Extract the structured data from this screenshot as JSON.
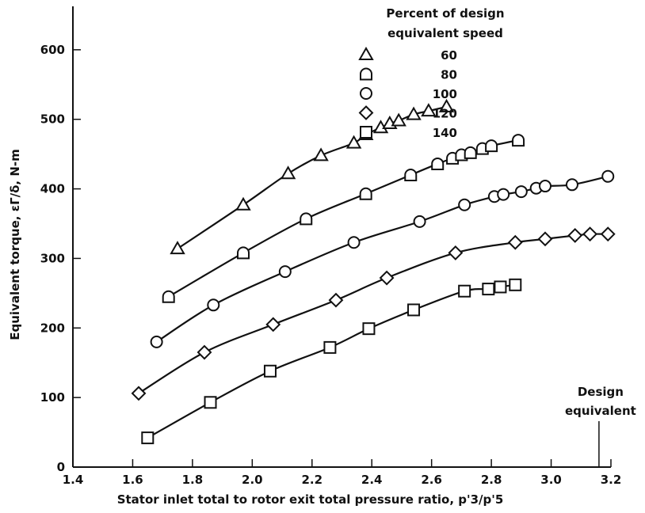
{
  "chart_data": {
    "type": "line",
    "title": "",
    "xlabel": "Stator inlet total to rotor exit total pressure ratio, p'3/p'5",
    "ylabel": "Equivalent torque, εΓ/δ, N-m",
    "xlim": [
      1.4,
      3.2
    ],
    "ylim": [
      0,
      700
    ],
    "x_ticks": [
      "1.4",
      "1.6",
      "1.8",
      "2.0",
      "2.2",
      "2.4",
      "2.6",
      "2.8",
      "3.0",
      "3.2"
    ],
    "y_ticks": [
      "0",
      "100",
      "200",
      "300",
      "400",
      "500",
      "600"
    ],
    "grid": false,
    "legend": {
      "title_line1": "Percent of design",
      "title_line2": "equivalent speed",
      "placement": "top-right"
    },
    "series": [
      {
        "name": "60",
        "marker": "triangle",
        "x": [
          1.75,
          1.97,
          2.12,
          2.23,
          2.34,
          2.38,
          2.43,
          2.46,
          2.49,
          2.54,
          2.59,
          2.65
        ],
        "y": [
          314,
          377,
          422,
          448,
          466,
          478,
          488,
          494,
          498,
          507,
          512,
          518
        ]
      },
      {
        "name": "80",
        "marker": "d-shape",
        "x": [
          1.72,
          1.97,
          2.18,
          2.38,
          2.53,
          2.62,
          2.67,
          2.7,
          2.73,
          2.77,
          2.8,
          2.89
        ],
        "y": [
          245,
          308,
          357,
          393,
          420,
          436,
          444,
          449,
          452,
          458,
          462,
          470
        ]
      },
      {
        "name": "100",
        "marker": "circle",
        "x": [
          1.68,
          1.87,
          2.11,
          2.34,
          2.56,
          2.71,
          2.81,
          2.84,
          2.9,
          2.95,
          2.98,
          3.07,
          3.19
        ],
        "y": [
          180,
          233,
          281,
          323,
          353,
          377,
          389,
          392,
          396,
          401,
          404,
          406,
          418
        ]
      },
      {
        "name": "120",
        "marker": "diamond",
        "x": [
          1.62,
          1.84,
          2.07,
          2.28,
          2.45,
          2.68,
          2.88,
          2.98,
          3.08,
          3.13,
          3.19
        ],
        "y": [
          106,
          165,
          205,
          240,
          272,
          308,
          323,
          328,
          333,
          335,
          335
        ]
      },
      {
        "name": "140",
        "marker": "square",
        "x": [
          1.65,
          1.86,
          2.06,
          2.26,
          2.39,
          2.54,
          2.71,
          2.79,
          2.83,
          2.88
        ],
        "y": [
          42,
          93,
          138,
          172,
          199,
          226,
          253,
          256,
          259,
          262
        ]
      }
    ],
    "annotation": {
      "line1": "Design",
      "line2": "equivalent",
      "x_value": 3.16
    }
  }
}
